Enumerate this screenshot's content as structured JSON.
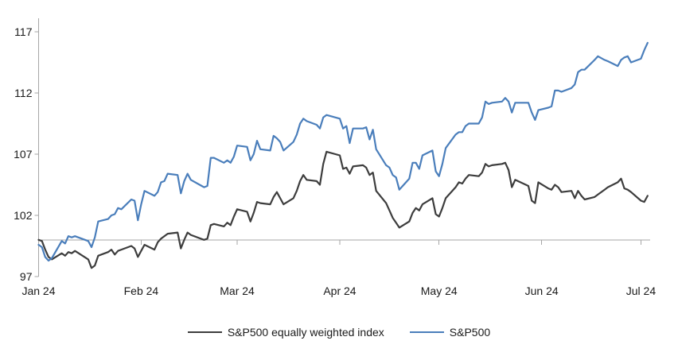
{
  "chart_data": {
    "type": "line",
    "title": "",
    "xlabel": "",
    "ylabel": "",
    "ylim": [
      97,
      117
    ],
    "yticks": [
      97,
      102,
      107,
      112,
      117
    ],
    "xtick_labels": [
      "Jan 24",
      "Feb 24",
      "Mar 24",
      "Apr 24",
      "May 24",
      "Jun 24",
      "Jul 24"
    ],
    "baseline_value": 100,
    "grid": false,
    "legend_position": "bottom",
    "axis_color": "#a6a6a6",
    "x_dates": [
      "01-01",
      "01-02",
      "01-03",
      "01-04",
      "01-05",
      "01-08",
      "01-09",
      "01-10",
      "01-11",
      "01-12",
      "01-16",
      "01-17",
      "01-18",
      "01-19",
      "01-22",
      "01-23",
      "01-24",
      "01-25",
      "01-26",
      "01-29",
      "01-30",
      "01-31",
      "02-01",
      "02-02",
      "02-05",
      "02-06",
      "02-07",
      "02-08",
      "02-09",
      "02-12",
      "02-13",
      "02-14",
      "02-15",
      "02-16",
      "02-20",
      "02-21",
      "02-22",
      "02-23",
      "02-26",
      "02-27",
      "02-28",
      "02-29",
      "03-01",
      "03-04",
      "03-05",
      "03-06",
      "03-07",
      "03-08",
      "03-11",
      "03-12",
      "03-13",
      "03-14",
      "03-15",
      "03-18",
      "03-19",
      "03-20",
      "03-21",
      "03-22",
      "03-25",
      "03-26",
      "03-27",
      "03-28",
      "04-01",
      "04-02",
      "04-03",
      "04-04",
      "04-05",
      "04-08",
      "04-09",
      "04-10",
      "04-11",
      "04-12",
      "04-15",
      "04-16",
      "04-17",
      "04-18",
      "04-19",
      "04-22",
      "04-23",
      "04-24",
      "04-25",
      "04-26",
      "04-29",
      "04-30",
      "05-01",
      "05-02",
      "05-03",
      "05-06",
      "05-07",
      "05-08",
      "05-09",
      "05-10",
      "05-13",
      "05-14",
      "05-15",
      "05-16",
      "05-17",
      "05-20",
      "05-21",
      "05-22",
      "05-23",
      "05-24",
      "05-28",
      "05-29",
      "05-30",
      "05-31",
      "06-03",
      "06-04",
      "06-05",
      "06-06",
      "06-07",
      "06-10",
      "06-11",
      "06-12",
      "06-13",
      "06-14",
      "06-17",
      "06-18",
      "06-20",
      "06-21",
      "06-24",
      "06-25",
      "06-26",
      "06-27",
      "06-28",
      "07-01",
      "07-02",
      "07-03"
    ],
    "series": [
      {
        "name": "S&P500 equally weighted index",
        "color": "#3d3d3d",
        "values": [
          100.0,
          99.9,
          99.2,
          98.6,
          98.4,
          98.9,
          98.7,
          99.0,
          98.9,
          99.1,
          98.4,
          97.7,
          97.9,
          98.7,
          99.0,
          99.2,
          98.8,
          99.1,
          99.2,
          99.5,
          99.3,
          98.6,
          99.1,
          99.6,
          99.2,
          99.8,
          100.1,
          100.3,
          100.5,
          100.6,
          99.3,
          100.0,
          100.6,
          100.4,
          100.0,
          100.1,
          101.2,
          101.3,
          101.1,
          101.4,
          101.2,
          101.9,
          102.5,
          102.3,
          101.5,
          102.2,
          103.1,
          103.0,
          102.9,
          103.5,
          103.9,
          103.4,
          102.9,
          103.4,
          104.0,
          104.8,
          105.3,
          104.9,
          104.8,
          104.5,
          106.2,
          107.2,
          106.9,
          105.8,
          105.9,
          105.4,
          106.0,
          106.1,
          105.9,
          105.3,
          105.5,
          104.0,
          103.0,
          102.4,
          101.8,
          101.4,
          101.0,
          101.5,
          102.2,
          102.6,
          102.4,
          102.9,
          103.4,
          102.1,
          101.9,
          102.6,
          103.4,
          104.3,
          104.7,
          104.6,
          105.0,
          105.3,
          105.2,
          105.5,
          106.2,
          106.0,
          106.1,
          106.2,
          106.3,
          105.7,
          104.3,
          104.9,
          104.4,
          103.2,
          103.0,
          104.7,
          104.2,
          104.1,
          104.5,
          104.3,
          103.9,
          104.0,
          103.4,
          104.0,
          103.6,
          103.3,
          103.5,
          103.7,
          104.1,
          104.3,
          104.7,
          105.0,
          104.2,
          104.1,
          103.9,
          103.2,
          103.1,
          103.6
        ]
      },
      {
        "name": "S&P500",
        "color": "#4a7ebb",
        "values": [
          99.6,
          99.4,
          98.6,
          98.3,
          98.5,
          99.9,
          99.7,
          100.3,
          100.2,
          100.3,
          99.9,
          99.4,
          100.2,
          101.5,
          101.7,
          102.0,
          102.1,
          102.6,
          102.5,
          103.3,
          103.2,
          101.6,
          102.9,
          104.0,
          103.6,
          103.9,
          104.7,
          104.8,
          105.4,
          105.3,
          103.8,
          104.8,
          105.4,
          104.9,
          104.3,
          104.4,
          106.7,
          106.7,
          106.3,
          106.5,
          106.3,
          106.8,
          107.7,
          107.6,
          106.5,
          107.0,
          108.1,
          107.4,
          107.3,
          108.5,
          108.3,
          108.0,
          107.3,
          108.0,
          108.6,
          109.5,
          109.9,
          109.7,
          109.4,
          109.1,
          110.0,
          110.2,
          109.9,
          109.1,
          109.3,
          107.9,
          109.1,
          109.1,
          109.2,
          108.2,
          109.0,
          107.4,
          106.1,
          105.9,
          105.3,
          105.1,
          104.1,
          105.0,
          106.3,
          106.3,
          105.8,
          106.9,
          107.3,
          105.6,
          105.2,
          106.2,
          107.5,
          108.6,
          108.8,
          108.8,
          109.3,
          109.5,
          109.5,
          110.0,
          111.3,
          111.1,
          111.2,
          111.3,
          111.6,
          111.3,
          110.4,
          111.2,
          111.2,
          110.4,
          109.8,
          110.6,
          110.8,
          110.9,
          112.2,
          112.2,
          112.1,
          112.4,
          112.7,
          113.7,
          113.9,
          113.9,
          114.7,
          115.0,
          114.7,
          114.6,
          114.2,
          114.7,
          114.9,
          115.0,
          114.5,
          114.8,
          115.5,
          116.1
        ]
      }
    ]
  }
}
